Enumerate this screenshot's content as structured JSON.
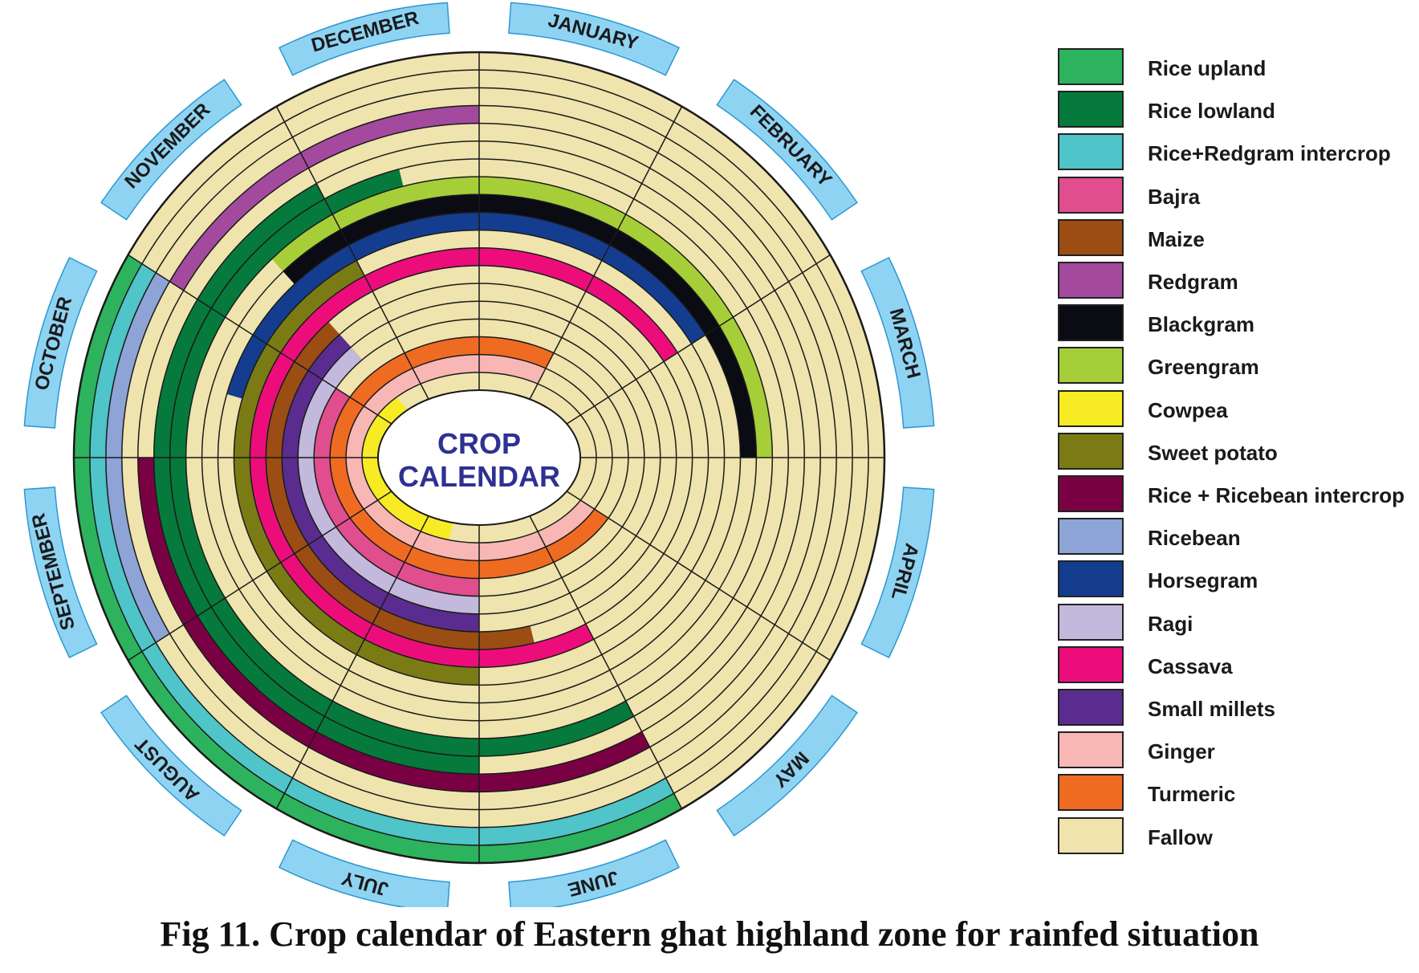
{
  "title": {
    "line1": "CROP",
    "line2": "CALENDAR"
  },
  "caption": "Fig 11. Crop calendar of Eastern ghat highland zone for rainfed situation",
  "months": [
    "JANUARY",
    "FEBRUARY",
    "MARCH",
    "APRIL",
    "MAY",
    "JUNE",
    "JULY",
    "AUGUST",
    "SEPTEMBER",
    "OCTOBER",
    "NOVEMBER",
    "DECEMBER"
  ],
  "legend": [
    {
      "key": "rice_upland",
      "label": "Rice upland",
      "color": "#2db35d"
    },
    {
      "key": "rice_lowland",
      "label": "Rice lowland",
      "color": "#057a3c"
    },
    {
      "key": "rice_redgram",
      "label": "Rice+Redgram intercrop",
      "color": "#4fc4c9"
    },
    {
      "key": "bajra",
      "label": "Bajra",
      "color": "#e04e8e"
    },
    {
      "key": "maize",
      "label": "Maize",
      "color": "#9b4d14"
    },
    {
      "key": "redgram",
      "label": "Redgram",
      "color": "#a34a9e"
    },
    {
      "key": "blackgram",
      "label": "Blackgram",
      "color": "#0b0b14"
    },
    {
      "key": "greengram",
      "label": "Greengram",
      "color": "#a6ce39"
    },
    {
      "key": "cowpea",
      "label": "Cowpea",
      "color": "#f7ec23"
    },
    {
      "key": "sweet_potato",
      "label": "Sweet potato",
      "color": "#7b7b16"
    },
    {
      "key": "rice_ricebean",
      "label": "Rice + Ricebean intercrop",
      "color": "#7a0044"
    },
    {
      "key": "ricebean",
      "label": "Ricebean",
      "color": "#8ea3d6"
    },
    {
      "key": "horsegram",
      "label": "Horsegram",
      "color": "#143d8f"
    },
    {
      "key": "ragi",
      "label": "Ragi",
      "color": "#c2b9dc"
    },
    {
      "key": "cassava",
      "label": "Cassava",
      "color": "#ec0d7b"
    },
    {
      "key": "small_millets",
      "label": "Small millets",
      "color": "#5b2c8f"
    },
    {
      "key": "ginger",
      "label": "Ginger",
      "color": "#f8b7b4"
    },
    {
      "key": "turmeric",
      "label": "Turmeric",
      "color": "#f06b22"
    },
    {
      "key": "fallow",
      "label": "Fallow",
      "color": "#efe4ad"
    }
  ],
  "rings_inner_to_outer": [
    {
      "crop": "cowpea",
      "start_month": 6.5,
      "duration_months": 4
    },
    {
      "crop": "ginger",
      "start_month": 4,
      "duration_months": 9
    },
    {
      "crop": "turmeric",
      "start_month": 4,
      "duration_months": 9
    },
    {
      "crop": "bajra",
      "start_month": 6,
      "duration_months": 4
    },
    {
      "crop": "ragi",
      "start_month": 6,
      "duration_months": 4.5
    },
    {
      "crop": "small_millets",
      "start_month": 6,
      "duration_months": 4.5
    },
    {
      "crop": "maize",
      "start_month": 5.5,
      "duration_months": 5
    },
    {
      "crop": "cassava",
      "start_month": 5,
      "duration_months": 9
    },
    {
      "crop": "sweet_potato",
      "start_month": 6,
      "duration_months": 5
    },
    {
      "crop": "horsegram",
      "start_month": 9.5,
      "duration_months": 4.5
    },
    {
      "crop": "blackgram",
      "start_month": 10.5,
      "duration_months": 4.5
    },
    {
      "crop": "greengram",
      "start_month": 10.5,
      "duration_months": 4.5
    },
    {
      "crop": "rice_lowland",
      "start_month": 5,
      "duration_months": 6.5
    },
    {
      "crop": "rice_lowland",
      "start_month": 6,
      "duration_months": 5
    },
    {
      "crop": "rice_ricebean",
      "start_month": 5,
      "duration_months": 4
    },
    {
      "crop": "redgram",
      "start_month": 10,
      "duration_months": 2
    },
    {
      "crop": "ricebean",
      "start_month": 8,
      "duration_months": 2
    },
    {
      "crop": "rice_redgram",
      "start_month": 5,
      "duration_months": 5
    },
    {
      "crop": "rice_upland",
      "start_month": 5,
      "duration_months": 5
    }
  ]
}
